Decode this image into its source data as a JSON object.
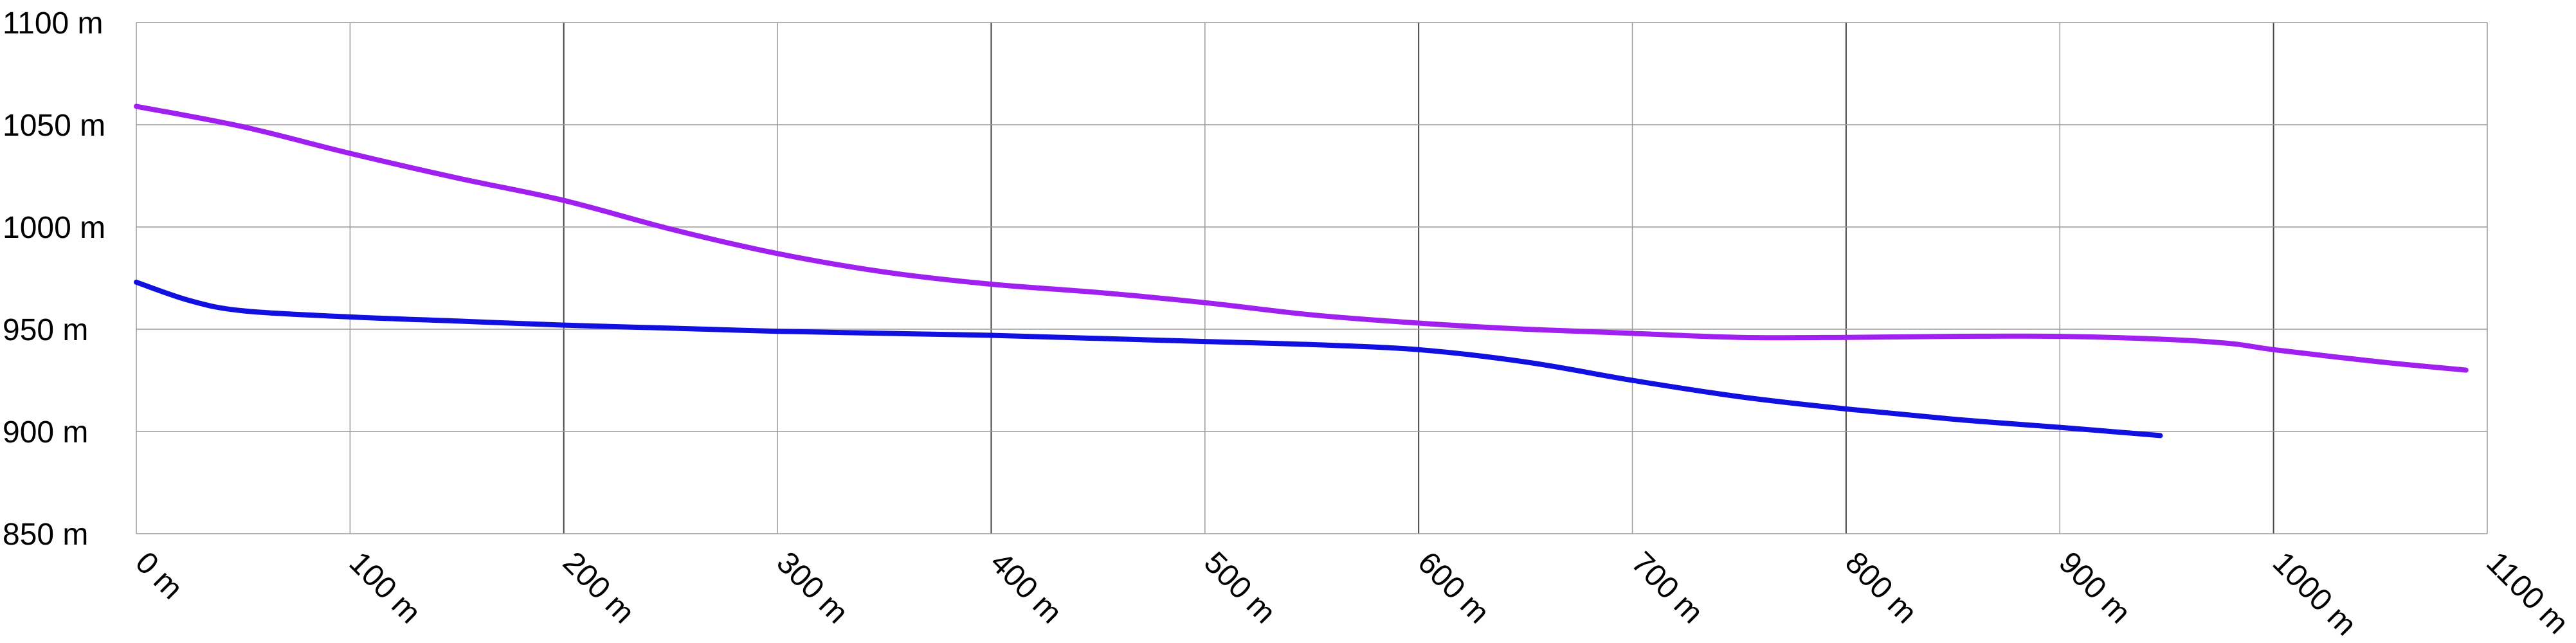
{
  "chart_data": {
    "type": "line",
    "title": "",
    "xlabel": "",
    "ylabel": "",
    "xlim": [
      0,
      1100
    ],
    "ylim": [
      850,
      1100
    ],
    "grid": true,
    "x_ticks": [
      {
        "value": 0,
        "label": "0 m"
      },
      {
        "value": 100,
        "label": "100 m"
      },
      {
        "value": 200,
        "label": "200 m"
      },
      {
        "value": 300,
        "label": "300 m"
      },
      {
        "value": 400,
        "label": "400 m"
      },
      {
        "value": 500,
        "label": "500 m"
      },
      {
        "value": 600,
        "label": "600 m"
      },
      {
        "value": 700,
        "label": "700 m"
      },
      {
        "value": 800,
        "label": "800 m"
      },
      {
        "value": 900,
        "label": "900 m"
      },
      {
        "value": 1000,
        "label": "1000 m"
      },
      {
        "value": 1100,
        "label": "1100 m"
      }
    ],
    "y_ticks": [
      {
        "value": 850,
        "label": "850 m"
      },
      {
        "value": 900,
        "label": "900 m"
      },
      {
        "value": 950,
        "label": "950 m"
      },
      {
        "value": 1000,
        "label": "1000 m"
      },
      {
        "value": 1050,
        "label": "1050 m"
      },
      {
        "value": 1100,
        "label": "1100 m"
      }
    ],
    "series": [
      {
        "color": "#a020f0",
        "points": [
          [
            0,
            1059
          ],
          [
            50,
            1049
          ],
          [
            100,
            1036
          ],
          [
            150,
            1024
          ],
          [
            200,
            1013
          ],
          [
            250,
            999
          ],
          [
            300,
            987
          ],
          [
            350,
            978
          ],
          [
            400,
            972
          ],
          [
            450,
            968
          ],
          [
            500,
            963
          ],
          [
            550,
            957
          ],
          [
            600,
            953
          ],
          [
            650,
            950
          ],
          [
            700,
            948
          ],
          [
            750,
            946
          ],
          [
            800,
            946
          ],
          [
            850,
            946.5
          ],
          [
            900,
            946.5
          ],
          [
            950,
            945
          ],
          [
            980,
            943
          ],
          [
            1000,
            940
          ],
          [
            1050,
            934
          ],
          [
            1090,
            930
          ]
        ]
      },
      {
        "color": "#1010e0",
        "points": [
          [
            0,
            973
          ],
          [
            25,
            964
          ],
          [
            50,
            959
          ],
          [
            100,
            956
          ],
          [
            150,
            954
          ],
          [
            200,
            952
          ],
          [
            250,
            950.5
          ],
          [
            300,
            949
          ],
          [
            350,
            948
          ],
          [
            400,
            947
          ],
          [
            450,
            945.5
          ],
          [
            500,
            944
          ],
          [
            550,
            942.5
          ],
          [
            600,
            940
          ],
          [
            650,
            934
          ],
          [
            700,
            925
          ],
          [
            750,
            917
          ],
          [
            800,
            911
          ],
          [
            850,
            906
          ],
          [
            900,
            902
          ],
          [
            947,
            898
          ]
        ]
      }
    ]
  }
}
